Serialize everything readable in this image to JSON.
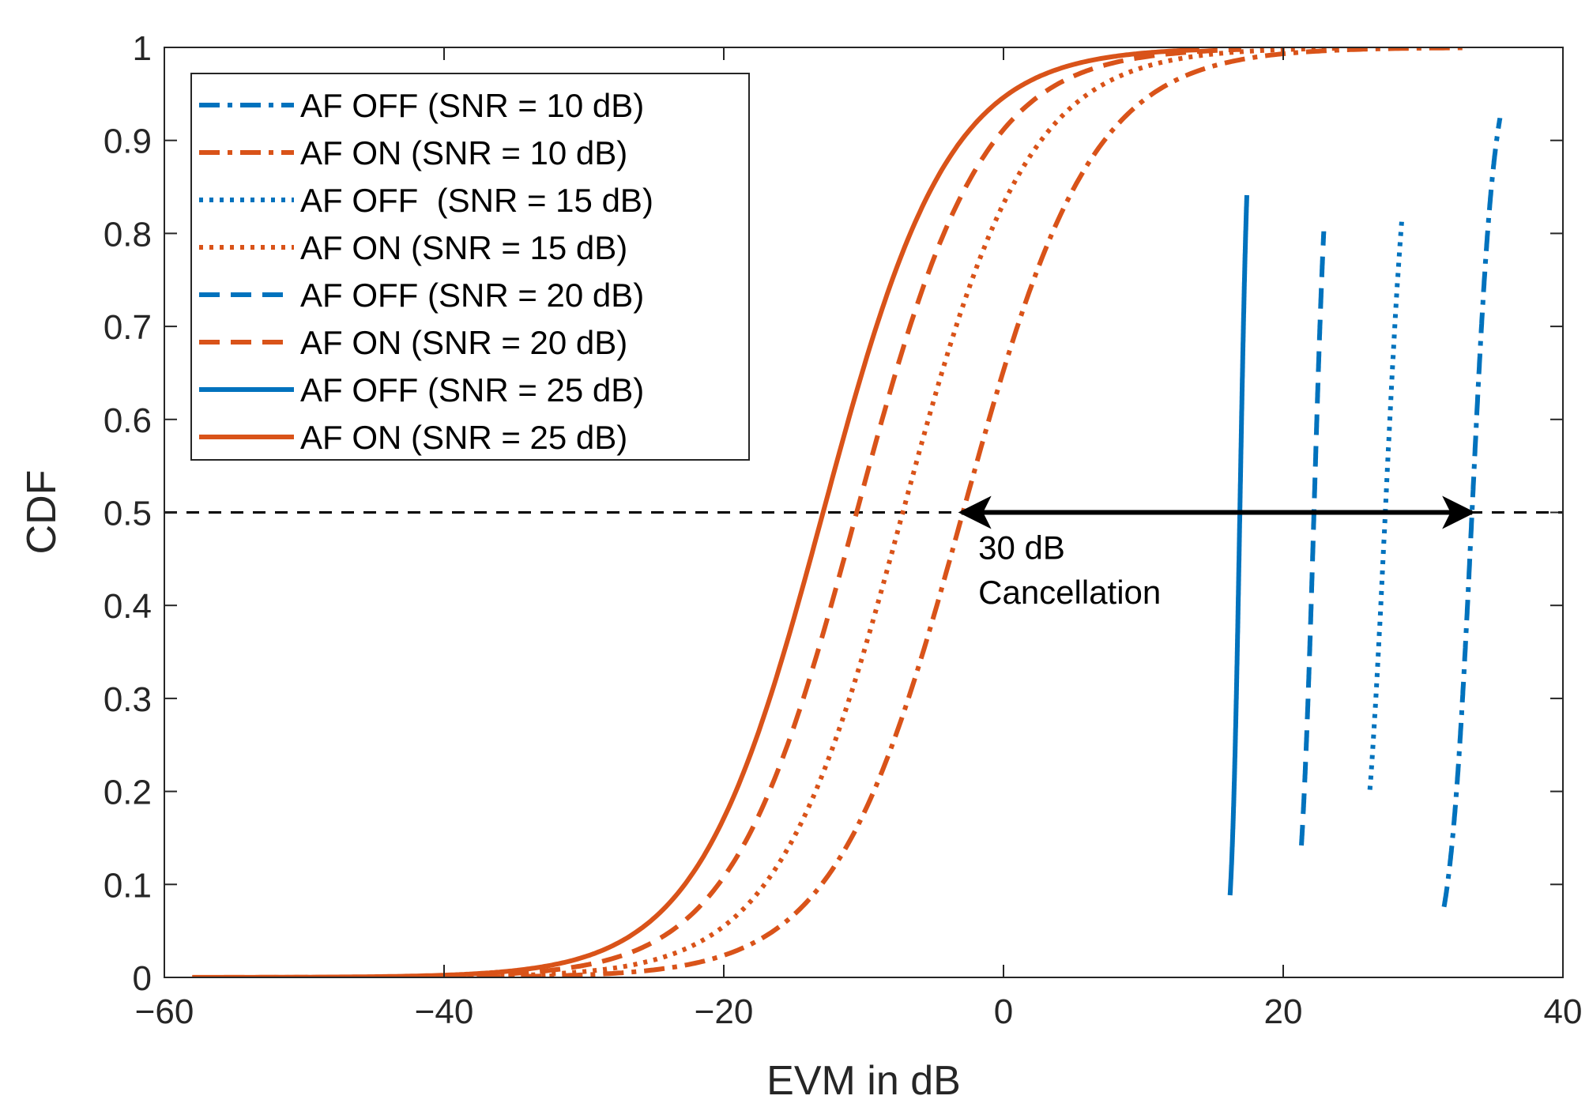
{
  "chart_data": {
    "type": "line",
    "title": "",
    "xlabel": "EVM in dB",
    "ylabel": "CDF",
    "xlim": [
      -60,
      40
    ],
    "ylim": [
      0,
      1
    ],
    "xticks": [
      -60,
      -40,
      -20,
      0,
      20,
      40
    ],
    "xtick_labels": [
      "−60",
      "−40",
      "−20",
      "0",
      "20",
      "40"
    ],
    "yticks": [
      0,
      0.1,
      0.2,
      0.3,
      0.4,
      0.5,
      0.6,
      0.7,
      0.8,
      0.9,
      1
    ],
    "ytick_labels": [
      "0",
      "0.1",
      "0.2",
      "0.3",
      "0.4",
      "0.5",
      "0.6",
      "0.7",
      "0.8",
      "0.9",
      "1"
    ],
    "grid": false,
    "legend_position": "top-left",
    "colors": {
      "af_off": "#0072BD",
      "af_on": "#D95319",
      "axis": "#262626",
      "annotation": "#000000"
    },
    "series": [
      {
        "name": "AF OFF (SNR = 10 dB)",
        "group": "af_off",
        "style": "dashdot",
        "median": 33.5,
        "spread": 0.8,
        "x_min": 31.5,
        "x_max": 35.5
      },
      {
        "name": "AF ON (SNR = 10 dB)",
        "group": "af_on",
        "style": "dashdot",
        "median": -2.9,
        "spread": 4.6,
        "x_min": -58,
        "x_max": 33
      },
      {
        "name": "AF OFF  (SNR = 15 dB)",
        "group": "af_off",
        "style": "dotted",
        "median": 27.3,
        "spread": 0.8,
        "x_min": 26.2,
        "x_max": 28.5
      },
      {
        "name": "AF ON (SNR = 15 dB)",
        "group": "af_on",
        "style": "dotted",
        "median": -7.2,
        "spread": 4.5,
        "x_min": -58,
        "x_max": 24
      },
      {
        "name": "AF OFF (SNR = 20 dB)",
        "group": "af_off",
        "style": "dashed",
        "median": 22.2,
        "spread": 0.5,
        "x_min": 21.3,
        "x_max": 22.9
      },
      {
        "name": "AF ON (SNR = 20 dB)",
        "group": "af_on",
        "style": "dashed",
        "median": -10.5,
        "spread": 4.5,
        "x_min": -58,
        "x_max": 17
      },
      {
        "name": "AF OFF (SNR = 25 dB)",
        "group": "af_off",
        "style": "solid",
        "median": 16.9,
        "spread": 0.3,
        "x_min": 16.2,
        "x_max": 17.4
      },
      {
        "name": "AF ON (SNR = 25 dB)",
        "group": "af_on",
        "style": "solid",
        "median": -12.9,
        "spread": 4.5,
        "x_min": -58,
        "x_max": 14
      }
    ],
    "reference_line": {
      "y": 0.5,
      "style": "dashed",
      "x_range": [
        -60,
        40
      ]
    },
    "annotation": {
      "arrow_from_x": -3,
      "arrow_to_x": 33.5,
      "arrow_y": 0.5,
      "line1": "30 dB",
      "line2": "Cancellation",
      "text_x": -1.8,
      "text_y1": 0.45,
      "text_y2": 0.402
    }
  }
}
